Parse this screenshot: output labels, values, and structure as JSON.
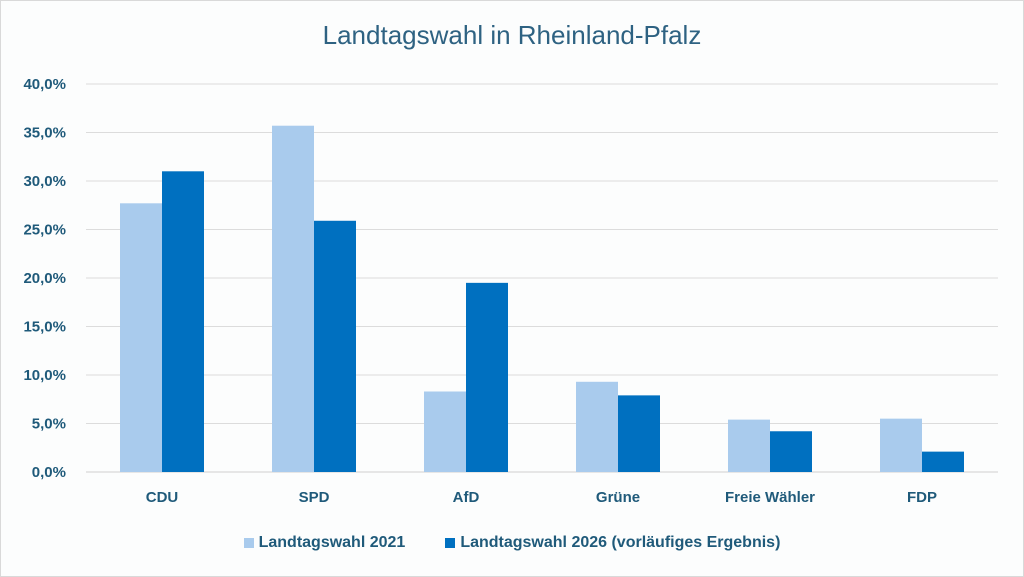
{
  "chart_data": {
    "type": "bar",
    "title": "Landtagswahl in Rheinland-Pfalz",
    "xlabel": "",
    "ylabel": "",
    "categories": [
      "CDU",
      "SPD",
      "AfD",
      "Grüne",
      "Freie Wähler",
      "FDP"
    ],
    "series": [
      {
        "name": "Landtagswahl 2021",
        "color": "#a9cbed",
        "values": [
          27.7,
          35.7,
          8.3,
          9.3,
          5.4,
          5.5
        ]
      },
      {
        "name": "Landtagswahl 2026 (vorläufiges Ergebnis)",
        "color": "#0070c0",
        "values": [
          31.0,
          25.9,
          19.5,
          7.9,
          4.2,
          2.1
        ]
      }
    ],
    "ylim": [
      0,
      40
    ],
    "yticks": [
      0,
      5,
      10,
      15,
      20,
      25,
      30,
      35,
      40
    ],
    "ytick_labels": [
      "0,0%",
      "5,0%",
      "10,0%",
      "15,0%",
      "20,0%",
      "25,0%",
      "30,0%",
      "35,0%",
      "40,0%"
    ],
    "grid": true,
    "legend_position": "bottom"
  }
}
